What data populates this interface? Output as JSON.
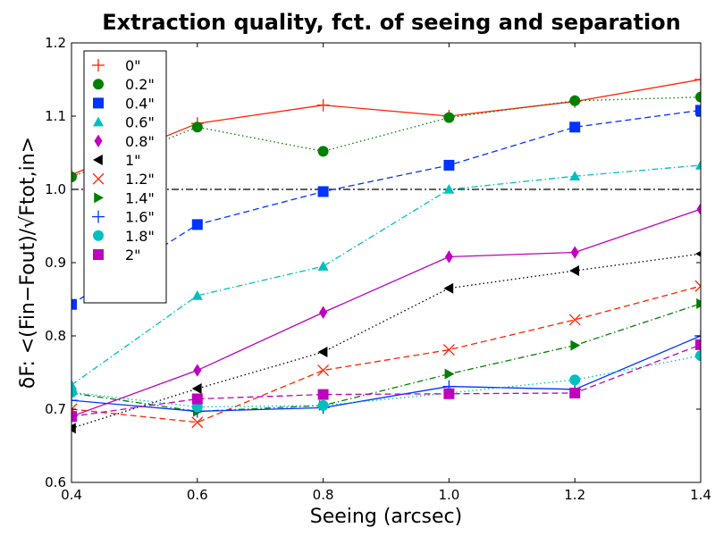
{
  "chart_data": {
    "type": "line",
    "title": "Extraction quality, fct. of seeing and separation",
    "xlabel": "Seeing (arcsec)",
    "ylabel": "δF: <(Fin−Fout)/√Ftot,in>",
    "xlim": [
      0.4,
      1.4
    ],
    "ylim": [
      0.6,
      1.2
    ],
    "x": [
      0.4,
      0.6,
      0.8,
      1.0,
      1.2,
      1.4
    ],
    "xticks": [
      "0.4",
      "0.6",
      "0.8",
      "1.0",
      "1.2",
      "1.4"
    ],
    "yticks": [
      "0.6",
      "0.7",
      "0.8",
      "0.9",
      "1.0",
      "1.1",
      "1.2"
    ],
    "grid": false,
    "legend_position": "upper-left",
    "reference_line": {
      "y": 1.0,
      "style": "dash-dot",
      "color": "#000000"
    },
    "series": [
      {
        "name": "0\"",
        "color": "#ff2200",
        "marker": "plus",
        "dash": "solid",
        "values": [
          1.02,
          1.09,
          1.115,
          1.1,
          1.12,
          1.15
        ]
      },
      {
        "name": "0.2\"",
        "color": "#008000",
        "marker": "circle",
        "dash": "dotted",
        "values": [
          1.017,
          1.085,
          1.052,
          1.098,
          1.121,
          1.126
        ]
      },
      {
        "name": "0.4\"",
        "color": "#0033ff",
        "marker": "square",
        "dash": "dashed",
        "values": [
          0.843,
          0.952,
          0.997,
          1.033,
          1.085,
          1.108
        ]
      },
      {
        "name": "0.6\"",
        "color": "#00bfbf",
        "marker": "triangle-up",
        "dash": "dashdot",
        "values": [
          0.733,
          0.855,
          0.895,
          1.0,
          1.018,
          1.033
        ]
      },
      {
        "name": "0.8\"",
        "color": "#bf00bf",
        "marker": "diamond",
        "dash": "solid",
        "values": [
          0.69,
          0.753,
          0.832,
          0.908,
          0.914,
          0.973
        ]
      },
      {
        "name": "1\"",
        "color": "#000000",
        "marker": "triangle-left",
        "dash": "dotted",
        "values": [
          0.674,
          0.728,
          0.778,
          0.865,
          0.889,
          0.912
        ]
      },
      {
        "name": "1.2\"",
        "color": "#ff2200",
        "marker": "x",
        "dash": "dashed",
        "values": [
          0.7,
          0.682,
          0.753,
          0.781,
          0.822,
          0.868
        ]
      },
      {
        "name": "1.4\"",
        "color": "#008000",
        "marker": "triangle-right",
        "dash": "dashdot",
        "values": [
          0.722,
          0.697,
          0.705,
          0.748,
          0.787,
          0.844
        ]
      },
      {
        "name": "1.6\"",
        "color": "#0033ff",
        "marker": "plus",
        "dash": "solid",
        "values": [
          0.712,
          0.697,
          0.702,
          0.731,
          0.727,
          0.8
        ]
      },
      {
        "name": "1.8\"",
        "color": "#00bfbf",
        "marker": "circle",
        "dash": "dotted",
        "values": [
          0.723,
          0.703,
          0.705,
          0.722,
          0.74,
          0.773
        ]
      },
      {
        "name": "2\"",
        "color": "#bf00bf",
        "marker": "square",
        "dash": "dashed",
        "values": [
          0.69,
          0.714,
          0.72,
          0.721,
          0.722,
          0.788
        ]
      }
    ]
  }
}
